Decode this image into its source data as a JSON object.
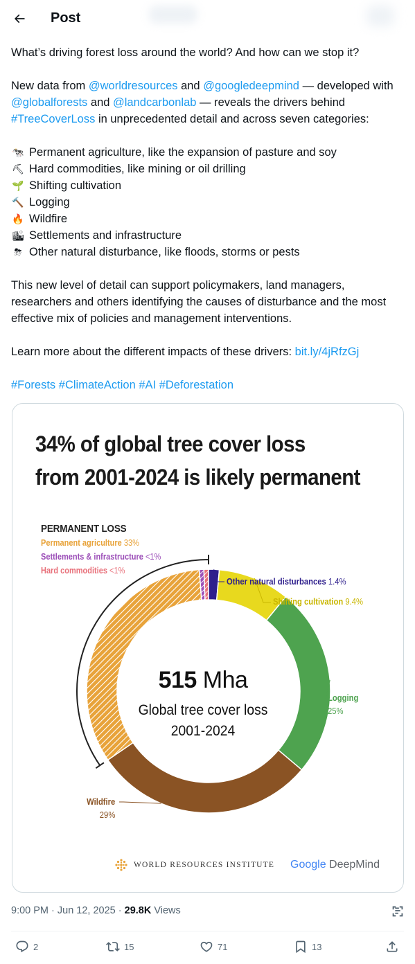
{
  "header": {
    "back_icon": "arrow-left-icon",
    "title": "Post"
  },
  "tweet": {
    "line1": "What’s driving forest loss around the world? And how can we stop it?",
    "p2_a": "New data from ",
    "mention1": "@worldresources",
    "p2_b": " and ",
    "mention2": "@googledeepmind",
    "p2_c": " — developed with ",
    "mention3": "@globalforests",
    "p2_d": " and ",
    "mention4": "@landcarbonlab",
    "p2_e": " — reveals the drivers behind ",
    "hashtag_tcl": "#TreeCoverLoss",
    "p2_f": " in unprecedented detail and across seven categories:",
    "drivers": [
      {
        "emoji": "🐄",
        "icon": "cow-icon",
        "text": "Permanent agriculture, like the expansion of pasture and soy"
      },
      {
        "emoji": "⛏",
        "icon": "pick-icon",
        "text": "Hard commodities, like mining or oil drilling"
      },
      {
        "emoji": "🌱",
        "icon": "seedling-icon",
        "text": "Shifting cultivation"
      },
      {
        "emoji": "🔨",
        "icon": "hammer-icon",
        "text": "Logging"
      },
      {
        "emoji": "🔥",
        "icon": "fire-icon",
        "text": "Wildfire"
      },
      {
        "emoji": "🏙",
        "icon": "cityscape-icon",
        "text": "Settlements and infrastructure"
      },
      {
        "emoji": "⛈",
        "icon": "storm-icon",
        "text": "Other natural disturbance, like floods, storms or pests"
      }
    ],
    "p4": "This new level of detail can support policymakers, land managers, researchers and others identifying the causes of disturbance and the most effective mix of policies and management interventions.",
    "p5_a": "Learn more about the different impacts of these drivers: ",
    "link": "bit.ly/4jRfzGj",
    "hashtags": [
      "#Forests",
      "#ClimateAction",
      "#AI",
      "#Deforestation"
    ]
  },
  "card": {
    "title_line1": "34% of global tree cover loss",
    "title_line2": "from 2001-2024 is likely permanent",
    "legend_heading": "PERMANENT LOSS",
    "center_value": "515",
    "center_unit": "Mha",
    "center_line1": "Global tree cover loss",
    "center_line2": "2001-2024",
    "wri_name": "WORLD RESOURCES INSTITUTE",
    "deepmind_google": "Google",
    "deepmind_name": "DeepMind"
  },
  "chart_data": {
    "type": "pie",
    "title": "34% of global tree cover loss from 2001-2024 is likely permanent",
    "total_label": "515 Mha",
    "series": [
      {
        "name": "Permanent agriculture",
        "label": "33%",
        "value": 33,
        "color": "#e8a33a",
        "permanent": true
      },
      {
        "name": "Settlements & infrastructure",
        "label": "<1%",
        "value": 0.6,
        "color": "#9c4fb8",
        "permanent": true
      },
      {
        "name": "Hard commodities",
        "label": "<1%",
        "value": 0.6,
        "color": "#e8707a",
        "permanent": true
      },
      {
        "name": "Other natural disturbances",
        "label": "1.4%",
        "value": 1.4,
        "color": "#2e1f8c",
        "permanent": false
      },
      {
        "name": "Shifting cultivation",
        "label": "9.4%",
        "value": 9.4,
        "color": "#e8d91e",
        "permanent": false
      },
      {
        "name": "Logging",
        "label": "25%",
        "value": 25,
        "color": "#4ea34f",
        "permanent": false
      },
      {
        "name": "Wildfire",
        "label": "29%",
        "value": 29,
        "color": "#8a5324",
        "permanent": false
      }
    ]
  },
  "meta": {
    "time": "9:00 PM · Jun 12, 2025 · ",
    "views_count": "29.8K",
    "views_label": " Views"
  },
  "actions": {
    "replies": "2",
    "reposts": "15",
    "likes": "71",
    "bookmarks": "13"
  },
  "colors": {
    "link": "#1d9bf0",
    "text": "#0f1419",
    "muted": "#536471"
  }
}
